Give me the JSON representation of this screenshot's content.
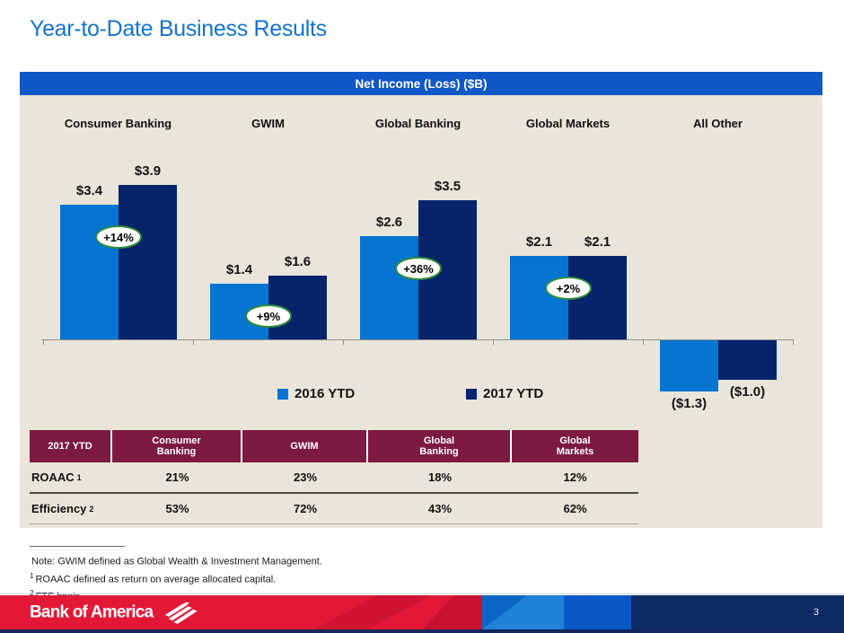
{
  "slide": {
    "title": "Year-to-Date Business Results"
  },
  "chart_data": {
    "type": "bar",
    "title": "Net Income (Loss) ($B)",
    "categories": [
      "Consumer Banking",
      "GWIM",
      "Global Banking",
      "Global Markets",
      "All Other"
    ],
    "series": [
      {
        "name": "2016 YTD",
        "color": "#0575d1",
        "values": [
          3.4,
          1.4,
          2.6,
          2.1,
          -1.3
        ],
        "labels": [
          "$3.4",
          "$1.4",
          "$2.6",
          "$2.1",
          "($1.3)"
        ]
      },
      {
        "name": "2017 YTD",
        "color": "#07236a",
        "values": [
          3.9,
          1.6,
          3.5,
          2.1,
          -1.0
        ],
        "labels": [
          "$3.9",
          "$1.6",
          "$3.5",
          "$2.1",
          "($1.0)"
        ]
      }
    ],
    "growth_badges": [
      {
        "category": "Consumer Banking",
        "label": "+14%"
      },
      {
        "category": "GWIM",
        "label": "+9%"
      },
      {
        "category": "Global Banking",
        "label": "+36%"
      },
      {
        "category": "Global Markets",
        "label": "+2%"
      }
    ],
    "legend_position": "bottom",
    "ylim": [
      -1.5,
      4.2
    ],
    "grid": false
  },
  "table": {
    "title_cell": "2017 YTD",
    "columns": [
      "Consumer\nBanking",
      "GWIM",
      "Global\nBanking",
      "Global\nMarkets"
    ],
    "rows": [
      {
        "label": "ROAAC",
        "sup": "1",
        "values": [
          "21%",
          "23%",
          "18%",
          "12%"
        ]
      },
      {
        "label": "Efficiency",
        "sup": "2",
        "values": [
          "53%",
          "72%",
          "43%",
          "62%"
        ]
      }
    ]
  },
  "notes": [
    {
      "sup": "",
      "text": "Note: GWIM defined as Global Wealth & Investment Management."
    },
    {
      "sup": "1",
      "text": "ROAAC defined as return on average allocated capital."
    },
    {
      "sup": "2",
      "text": "FTE basis."
    }
  ],
  "footer": {
    "logo_text": "Bank of America",
    "page_number": "3"
  },
  "colors": {
    "title_blue": "#1173d3",
    "header_bar_blue": "#1057c8",
    "panel_beige": "#e9e5da",
    "bar_2016_blue": "#0575d1",
    "bar_2017_navy": "#07236a",
    "badge_green": "#2e8b3a",
    "table_maroon": "#7c1a40",
    "bofa_red": "#e31837",
    "footer_navy": "#0e2a63"
  }
}
